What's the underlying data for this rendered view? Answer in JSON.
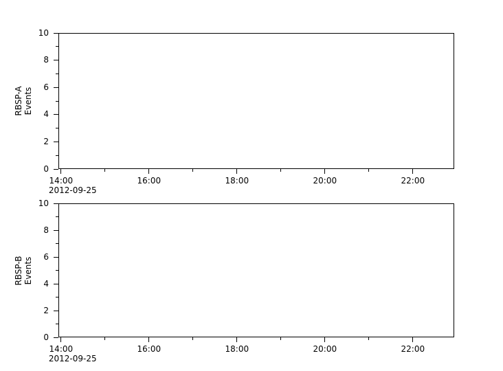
{
  "colors": {
    "background": "#ffffff",
    "axis": "#000000",
    "text": "#000000"
  },
  "chart_data": [
    {
      "type": "line",
      "panel": "RBSP-A",
      "ylabel": "RBSP-A Events",
      "ylabel_lines": [
        "RBSP-A",
        "Events"
      ],
      "ylim": [
        0,
        10
      ],
      "y_major_ticks": [
        0,
        2,
        4,
        6,
        8,
        10
      ],
      "y_minor_ticks": [
        1,
        3,
        5,
        7,
        9
      ],
      "x_range_hours": [
        13.94,
        22.94
      ],
      "x_major_tick_labels": [
        "14:00",
        "16:00",
        "18:00",
        "20:00",
        "22:00"
      ],
      "x_minor_tick_labels": [
        "15:00",
        "17:00",
        "19:00",
        "21:00"
      ],
      "x_date_label": "2012-09-25",
      "series": [],
      "grid": false,
      "legend": null
    },
    {
      "type": "line",
      "panel": "RBSP-B",
      "ylabel": "RBSP-B Events",
      "ylabel_lines": [
        "RBSP-B",
        "Events"
      ],
      "ylim": [
        0,
        10
      ],
      "y_major_ticks": [
        0,
        2,
        4,
        6,
        8,
        10
      ],
      "y_minor_ticks": [
        1,
        3,
        5,
        7,
        9
      ],
      "x_range_hours": [
        13.94,
        22.94
      ],
      "x_major_tick_labels": [
        "14:00",
        "16:00",
        "18:00",
        "20:00",
        "22:00"
      ],
      "x_minor_tick_labels": [
        "15:00",
        "17:00",
        "19:00",
        "21:00"
      ],
      "x_date_label": "2012-09-25",
      "series": [],
      "grid": false,
      "legend": null
    }
  ]
}
